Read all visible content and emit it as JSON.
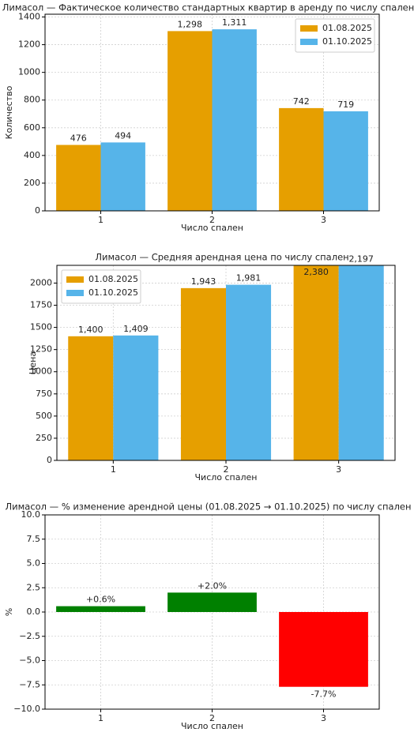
{
  "chart_data": [
    {
      "type": "bar",
      "title": "Лимасол — Фактическое количество стандартных квартир в аренду по числу спален",
      "x_label": "Число спален",
      "y_label": "Количество",
      "categories": [
        "1",
        "2",
        "3"
      ],
      "series": [
        {
          "name": "01.08.2025",
          "color": "#E69F00",
          "values": [
            476,
            1298,
            742
          ],
          "value_labels": [
            "476",
            "1,298",
            "742"
          ]
        },
        {
          "name": "01.10.2025",
          "color": "#56B4E9",
          "values": [
            494,
            1311,
            719
          ],
          "value_labels": [
            "494",
            "1,311",
            "719"
          ]
        }
      ],
      "ylim": [
        0,
        1420
      ],
      "yticks": [
        0,
        200,
        400,
        600,
        800,
        1000,
        1200,
        1400
      ],
      "grid": true,
      "legend": "upper right"
    },
    {
      "type": "bar",
      "title": "Лимасол — Средняя арендная цена по числу спален",
      "x_label": "Число спален",
      "y_label": "Цена",
      "categories": [
        "1",
        "2",
        "3"
      ],
      "series": [
        {
          "name": "01.08.2025",
          "color": "#E69F00",
          "values": [
            1400,
            1943,
            2380
          ],
          "value_labels": [
            "1,400",
            "1,943",
            "2,380"
          ]
        },
        {
          "name": "01.10.2025",
          "color": "#56B4E9",
          "values": [
            1409,
            1981,
            2197
          ],
          "value_labels": [
            "1,409",
            "1,981",
            "2,197"
          ]
        }
      ],
      "ylim": [
        0,
        2200
      ],
      "yticks": [
        0,
        250,
        500,
        750,
        1000,
        1250,
        1500,
        1750,
        2000
      ],
      "grid": true,
      "legend": "upper left"
    },
    {
      "type": "bar",
      "title": "Лимасол — % изменение арендной цены (01.08.2025 → 01.10.2025) по числу спален",
      "x_label": "Число спален",
      "y_label": "%",
      "categories": [
        "1",
        "2",
        "3"
      ],
      "values": [
        0.6,
        2.0,
        -7.7
      ],
      "value_labels": [
        "+0.6%",
        "+2.0%",
        "-7.7%"
      ],
      "colors": [
        "green",
        "green",
        "red"
      ],
      "ylim": [
        -10,
        10
      ],
      "yticks": [
        {
          "value": -10,
          "label": "−10.0"
        },
        {
          "value": -7.5,
          "label": "−7.5"
        },
        {
          "value": -5,
          "label": "−5.0"
        },
        {
          "value": -2.5,
          "label": "−2.5"
        },
        {
          "value": 0,
          "label": "0.0"
        },
        2.5,
        {
          "value": 5,
          "label": "5.0"
        },
        7.5,
        {
          "value": 10,
          "label": "10.0"
        }
      ],
      "grid": true
    }
  ]
}
